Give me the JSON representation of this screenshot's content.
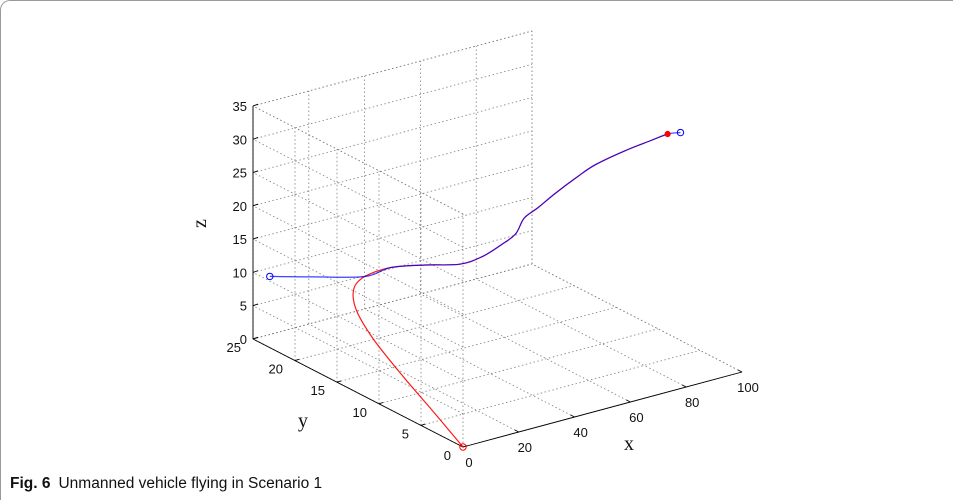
{
  "caption": {
    "label": "Fig. 6",
    "text": "Unmanned vehicle flying in Scenario 1"
  },
  "chart_data": {
    "type": "line3d",
    "xlabel": "x",
    "ylabel": "y",
    "zlabel": "z",
    "xlim": [
      0,
      100
    ],
    "ylim": [
      0,
      25
    ],
    "zlim": [
      0,
      35
    ],
    "x_ticks": [
      0,
      20,
      40,
      60,
      80,
      100
    ],
    "y_ticks": [
      0,
      5,
      10,
      15,
      20,
      25
    ],
    "z_ticks": [
      0,
      5,
      10,
      15,
      20,
      25,
      30,
      35
    ],
    "grid": true,
    "colors": {
      "blue": "#0000ff",
      "red": "#ff0000",
      "overlap": "#7a1f9a",
      "axis": "#000000",
      "grid": "#7f7f7f"
    },
    "series": [
      {
        "color": "red",
        "points": [
          [
            0,
            0,
            0
          ],
          [
            3,
            4.5,
            2
          ],
          [
            5,
            9,
            4.5
          ],
          [
            7,
            13,
            7
          ],
          [
            10,
            16,
            9
          ],
          [
            15,
            18,
            10.3
          ],
          [
            22,
            19,
            10.8
          ],
          [
            32,
            19.2,
            10.9
          ],
          [
            42,
            18.5,
            10.6
          ],
          [
            50,
            17,
            10.8
          ],
          [
            52,
            15,
            13
          ],
          [
            50,
            12,
            17
          ],
          [
            46,
            9,
            21
          ],
          [
            43,
            7,
            25
          ],
          [
            42,
            5,
            28
          ],
          [
            44,
            3.5,
            31
          ],
          [
            50,
            3,
            33
          ],
          [
            58,
            3.5,
            33.6
          ],
          [
            70,
            4,
            34
          ],
          [
            80,
            4.2,
            34.3
          ],
          [
            86,
            4.2,
            34.6
          ]
        ]
      },
      {
        "color": "blue",
        "points": [
          [
            0,
            23,
            10.7
          ],
          [
            10,
            21,
            10.8
          ],
          [
            22,
            19,
            10.8
          ],
          [
            32,
            19.2,
            10.9
          ],
          [
            42,
            18.5,
            10.6
          ],
          [
            50,
            17,
            10.8
          ],
          [
            52,
            15,
            13
          ],
          [
            50,
            12,
            17
          ],
          [
            46,
            9,
            21
          ],
          [
            43,
            7,
            25
          ],
          [
            42,
            5,
            28
          ],
          [
            44,
            3.5,
            31
          ],
          [
            50,
            3,
            33
          ],
          [
            58,
            3.5,
            33.6
          ],
          [
            70,
            4,
            34
          ],
          [
            80,
            4.2,
            34.3
          ],
          [
            86,
            4.2,
            34.6
          ],
          [
            90,
            4,
            34.5
          ]
        ]
      }
    ],
    "markers": [
      {
        "point": [
          0,
          23,
          10.7
        ],
        "style": "open-circle",
        "color": "blue"
      },
      {
        "point": [
          0,
          0,
          0
        ],
        "style": "open-circle",
        "color": "red"
      },
      {
        "point": [
          86,
          4.2,
          34.6
        ],
        "style": "filled-circle",
        "color": "red"
      },
      {
        "point": [
          90,
          4,
          34.5
        ],
        "style": "open-circle",
        "color": "blue"
      }
    ]
  }
}
